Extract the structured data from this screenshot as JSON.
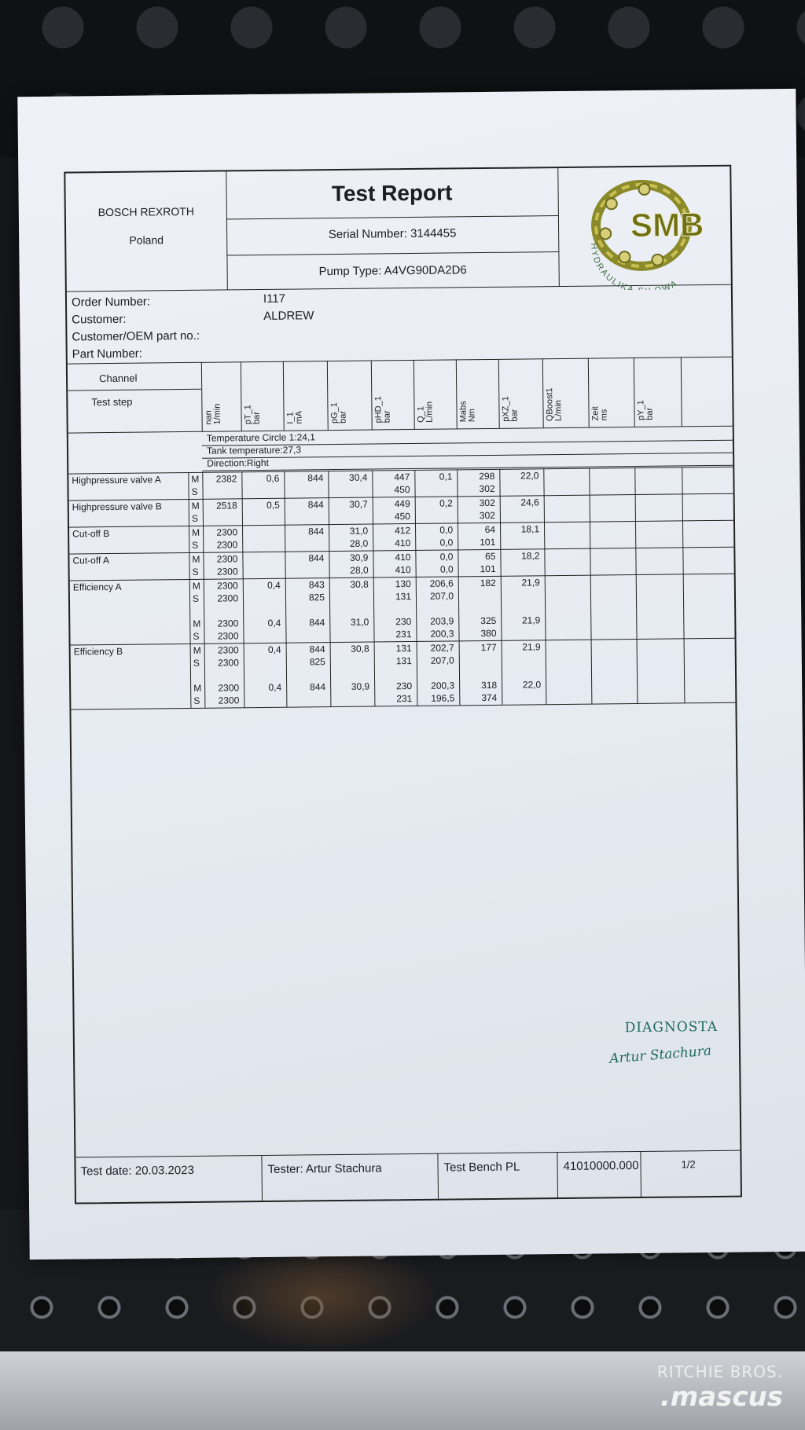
{
  "header": {
    "company": "BOSCH REXROTH",
    "country": "Poland",
    "title": "Test Report",
    "serial": "Serial Number: 3144455",
    "pump_type": "Pump Type: A4VG90DA2D6",
    "logo_text": "SMB",
    "logo_ring": "HYDRAULIKA SIŁOWA"
  },
  "info": {
    "order_label": "Order Number:",
    "order_value": "I117",
    "customer_label": "Customer:",
    "customer_value": "ALDREW",
    "oem_label": "Customer/OEM part no.:",
    "part_label": "Part Number:"
  },
  "table": {
    "channel_label": "Channel",
    "step_label": "Test step",
    "columns": [
      {
        "name": "nan",
        "unit": "1/min"
      },
      {
        "name": "pT_1",
        "unit": "bar"
      },
      {
        "name": "I_1",
        "unit": "mA"
      },
      {
        "name": "pG_1",
        "unit": "bar"
      },
      {
        "name": "pHD_1",
        "unit": "bar"
      },
      {
        "name": "Q_1",
        "unit": "L/min"
      },
      {
        "name": "Mabs",
        "unit": "Nm"
      },
      {
        "name": "pXZ_1",
        "unit": "bar"
      },
      {
        "name": "QBoost1",
        "unit": "L/min"
      },
      {
        "name": "Zeit",
        "unit": "ms"
      },
      {
        "name": "pY_1",
        "unit": "bar"
      }
    ],
    "conditions": [
      "Temperature Circle 1:24,1",
      "Tank temperature:27,3",
      "Direction:Right"
    ],
    "sections": [
      {
        "name": "Highpressure valve A",
        "rows": [
          {
            "ms": "M",
            "v": [
              "2382",
              "0,6",
              "844",
              "30,4",
              "447",
              "0,1",
              "298",
              "22,0",
              "",
              "",
              ""
            ]
          },
          {
            "ms": "S",
            "v": [
              "",
              "",
              "",
              "",
              "450",
              "",
              "302",
              "",
              "",
              "",
              ""
            ]
          }
        ]
      },
      {
        "name": "Highpressure valve B",
        "rows": [
          {
            "ms": "M",
            "v": [
              "2518",
              "0,5",
              "844",
              "30,7",
              "449",
              "0,2",
              "302",
              "24,6",
              "",
              "",
              ""
            ]
          },
          {
            "ms": "S",
            "v": [
              "",
              "",
              "",
              "",
              "450",
              "",
              "302",
              "",
              "",
              "",
              ""
            ]
          }
        ]
      },
      {
        "name": "Cut-off B",
        "rows": [
          {
            "ms": "M",
            "v": [
              "2300",
              "",
              "844",
              "31,0",
              "412",
              "0,0",
              "64",
              "18,1",
              "",
              "",
              ""
            ]
          },
          {
            "ms": "S",
            "v": [
              "2300",
              "",
              "",
              "28,0",
              "410",
              "0,0",
              "101",
              "",
              "",
              "",
              ""
            ]
          }
        ]
      },
      {
        "name": "Cut-off A",
        "rows": [
          {
            "ms": "M",
            "v": [
              "2300",
              "",
              "844",
              "30,9",
              "410",
              "0,0",
              "65",
              "18,2",
              "",
              "",
              ""
            ]
          },
          {
            "ms": "S",
            "v": [
              "2300",
              "",
              "",
              "28,0",
              "410",
              "0,0",
              "101",
              "",
              "",
              "",
              ""
            ]
          }
        ]
      },
      {
        "name": "Efficiency A",
        "rows": [
          {
            "ms": "M",
            "v": [
              "2300",
              "0,4",
              "843",
              "30,8",
              "130",
              "206,6",
              "182",
              "21,9",
              "",
              "",
              ""
            ]
          },
          {
            "ms": "S",
            "v": [
              "2300",
              "",
              "825",
              "",
              "131",
              "207,0",
              "",
              "",
              "",
              "",
              ""
            ]
          },
          {
            "ms": "M",
            "v": [
              "2300",
              "0,4",
              "844",
              "31,0",
              "230",
              "203,9",
              "325",
              "21,9",
              "",
              "",
              ""
            ]
          },
          {
            "ms": "S",
            "v": [
              "2300",
              "",
              "",
              "",
              "231",
              "200,3",
              "380",
              "",
              "",
              "",
              ""
            ]
          }
        ]
      },
      {
        "name": "Efficiency B",
        "rows": [
          {
            "ms": "M",
            "v": [
              "2300",
              "0,4",
              "844",
              "30,8",
              "131",
              "202,7",
              "177",
              "21,9",
              "",
              "",
              ""
            ]
          },
          {
            "ms": "S",
            "v": [
              "2300",
              "",
              "825",
              "",
              "131",
              "207,0",
              "",
              "",
              "",
              "",
              ""
            ]
          },
          {
            "ms": "M",
            "v": [
              "2300",
              "0,4",
              "844",
              "30,9",
              "230",
              "200,3",
              "318",
              "22,0",
              "",
              "",
              ""
            ]
          },
          {
            "ms": "S",
            "v": [
              "2300",
              "",
              "",
              "",
              "231",
              "196,5",
              "374",
              "",
              "",
              "",
              ""
            ]
          }
        ]
      }
    ]
  },
  "stamp": {
    "line1": "DIAGNOSTA",
    "line2": "Artur Stachura"
  },
  "footer": {
    "test_date": "Test date: 20.03.2023",
    "tester": "Tester: Artur Stachura",
    "bench": "Test Bench PL",
    "code": "41010000.000",
    "page": "1/2"
  },
  "watermark": {
    "line1": "RITCHIE BROS.",
    "line2": ".mascus"
  }
}
